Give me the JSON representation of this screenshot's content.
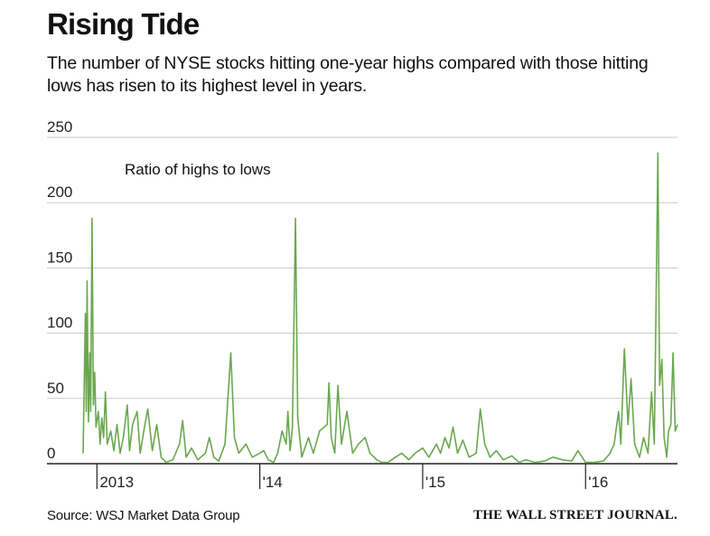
{
  "header": {
    "title": "Rising Tide",
    "subtitle": "The number of NYSE stocks hitting one-year highs compared with those hitting lows has risen to its highest level in years."
  },
  "footer": {
    "source": "Source: WSJ Market Data Group",
    "publisher": "THE WALL STREET JOURNAL."
  },
  "chart_data": {
    "type": "line",
    "title": "Rising Tide",
    "series_label": "Ratio of highs to lows",
    "xlabel": "",
    "ylabel": "",
    "ylim": [
      0,
      250
    ],
    "yticks": [
      0,
      50,
      100,
      150,
      200,
      250
    ],
    "xlim": [
      "2012-12-01",
      "2016-07-25"
    ],
    "xticks": [
      {
        "label": "2013",
        "date": "2013-01-01"
      },
      {
        "label": "'14",
        "date": "2014-01-01"
      },
      {
        "label": "'15",
        "date": "2015-01-01"
      },
      {
        "label": "'16",
        "date": "2016-01-01"
      }
    ],
    "grid": true,
    "color": "#6aa84f",
    "series": [
      {
        "name": "Ratio of highs to lows",
        "points": [
          [
            "2012-12-01",
            8
          ],
          [
            "2012-12-06",
            115
          ],
          [
            "2012-12-08",
            40
          ],
          [
            "2012-12-10",
            140
          ],
          [
            "2012-12-13",
            32
          ],
          [
            "2012-12-16",
            85
          ],
          [
            "2012-12-18",
            40
          ],
          [
            "2012-12-21",
            188
          ],
          [
            "2012-12-24",
            45
          ],
          [
            "2012-12-27",
            70
          ],
          [
            "2012-12-30",
            28
          ],
          [
            "2013-01-04",
            40
          ],
          [
            "2013-01-08",
            15
          ],
          [
            "2013-01-12",
            35
          ],
          [
            "2013-01-16",
            20
          ],
          [
            "2013-01-20",
            55
          ],
          [
            "2013-01-24",
            15
          ],
          [
            "2013-02-01",
            25
          ],
          [
            "2013-02-08",
            10
          ],
          [
            "2013-02-15",
            30
          ],
          [
            "2013-02-22",
            8
          ],
          [
            "2013-03-01",
            20
          ],
          [
            "2013-03-10",
            45
          ],
          [
            "2013-03-15",
            10
          ],
          [
            "2013-03-22",
            30
          ],
          [
            "2013-04-01",
            40
          ],
          [
            "2013-04-08",
            8
          ],
          [
            "2013-04-16",
            25
          ],
          [
            "2013-04-25",
            42
          ],
          [
            "2013-05-05",
            10
          ],
          [
            "2013-05-15",
            30
          ],
          [
            "2013-05-25",
            5
          ],
          [
            "2013-06-05",
            1
          ],
          [
            "2013-06-20",
            3
          ],
          [
            "2013-07-05",
            15
          ],
          [
            "2013-07-12",
            33
          ],
          [
            "2013-07-20",
            5
          ],
          [
            "2013-08-01",
            12
          ],
          [
            "2013-08-15",
            3
          ],
          [
            "2013-09-01",
            8
          ],
          [
            "2013-09-10",
            20
          ],
          [
            "2013-09-20",
            5
          ],
          [
            "2013-10-01",
            2
          ],
          [
            "2013-10-15",
            15
          ],
          [
            "2013-10-28",
            85
          ],
          [
            "2013-11-05",
            20
          ],
          [
            "2013-11-15",
            8
          ],
          [
            "2013-12-01",
            15
          ],
          [
            "2013-12-15",
            5
          ],
          [
            "2014-01-01",
            8
          ],
          [
            "2014-01-10",
            10
          ],
          [
            "2014-01-20",
            3
          ],
          [
            "2014-02-01",
            1
          ],
          [
            "2014-02-10",
            8
          ],
          [
            "2014-02-20",
            25
          ],
          [
            "2014-03-01",
            15
          ],
          [
            "2014-03-05",
            40
          ],
          [
            "2014-03-10",
            10
          ],
          [
            "2014-03-15",
            28
          ],
          [
            "2014-03-22",
            188
          ],
          [
            "2014-03-27",
            35
          ],
          [
            "2014-04-05",
            5
          ],
          [
            "2014-04-20",
            20
          ],
          [
            "2014-05-01",
            8
          ],
          [
            "2014-05-15",
            25
          ],
          [
            "2014-06-01",
            30
          ],
          [
            "2014-06-05",
            62
          ],
          [
            "2014-06-10",
            20
          ],
          [
            "2014-06-18",
            8
          ],
          [
            "2014-06-25",
            60
          ],
          [
            "2014-07-03",
            15
          ],
          [
            "2014-07-15",
            40
          ],
          [
            "2014-07-28",
            8
          ],
          [
            "2014-08-10",
            15
          ],
          [
            "2014-08-25",
            20
          ],
          [
            "2014-09-05",
            8
          ],
          [
            "2014-09-20",
            3
          ],
          [
            "2014-10-01",
            1
          ],
          [
            "2014-10-15",
            1
          ],
          [
            "2014-11-01",
            5
          ],
          [
            "2014-11-15",
            8
          ],
          [
            "2014-12-01",
            3
          ],
          [
            "2014-12-15",
            8
          ],
          [
            "2015-01-01",
            12
          ],
          [
            "2015-01-15",
            5
          ],
          [
            "2015-02-01",
            15
          ],
          [
            "2015-02-10",
            8
          ],
          [
            "2015-02-20",
            20
          ],
          [
            "2015-03-01",
            12
          ],
          [
            "2015-03-10",
            28
          ],
          [
            "2015-03-20",
            8
          ],
          [
            "2015-04-01",
            18
          ],
          [
            "2015-04-15",
            5
          ],
          [
            "2015-05-01",
            8
          ],
          [
            "2015-05-10",
            42
          ],
          [
            "2015-05-20",
            15
          ],
          [
            "2015-06-01",
            5
          ],
          [
            "2015-06-15",
            10
          ],
          [
            "2015-07-01",
            3
          ],
          [
            "2015-07-20",
            6
          ],
          [
            "2015-08-05",
            1
          ],
          [
            "2015-08-20",
            3
          ],
          [
            "2015-09-10",
            1
          ],
          [
            "2015-10-01",
            2
          ],
          [
            "2015-10-20",
            5
          ],
          [
            "2015-11-10",
            3
          ],
          [
            "2015-12-01",
            2
          ],
          [
            "2015-12-15",
            10
          ],
          [
            "2016-01-01",
            1
          ],
          [
            "2016-01-20",
            1
          ],
          [
            "2016-02-10",
            2
          ],
          [
            "2016-02-25",
            8
          ],
          [
            "2016-03-05",
            15
          ],
          [
            "2016-03-15",
            40
          ],
          [
            "2016-03-20",
            15
          ],
          [
            "2016-03-28",
            88
          ],
          [
            "2016-04-05",
            30
          ],
          [
            "2016-04-12",
            65
          ],
          [
            "2016-04-20",
            15
          ],
          [
            "2016-05-01",
            5
          ],
          [
            "2016-05-10",
            20
          ],
          [
            "2016-05-20",
            8
          ],
          [
            "2016-05-28",
            55
          ],
          [
            "2016-06-03",
            15
          ],
          [
            "2016-06-08",
            150
          ],
          [
            "2016-06-11",
            238
          ],
          [
            "2016-06-15",
            60
          ],
          [
            "2016-06-20",
            80
          ],
          [
            "2016-06-25",
            20
          ],
          [
            "2016-07-01",
            5
          ],
          [
            "2016-07-05",
            25
          ],
          [
            "2016-07-10",
            30
          ],
          [
            "2016-07-15",
            85
          ],
          [
            "2016-07-20",
            25
          ],
          [
            "2016-07-25",
            30
          ]
        ]
      }
    ]
  }
}
